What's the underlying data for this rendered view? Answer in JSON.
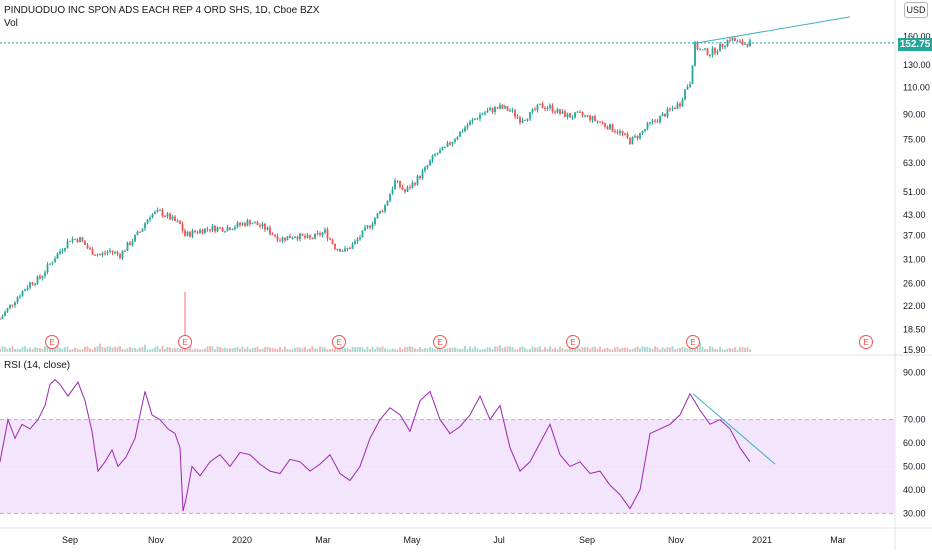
{
  "chart_data": {
    "type": "candlestick",
    "title": "PINDUODUO INC SPON ADS EACH REP 4 ORD SHS, 1D, Cboe BZX",
    "volume_label": "Vol",
    "currency": "USD",
    "last_price": "152.75",
    "price_axis_ticks": [
      "160.00",
      "130.00",
      "110.00",
      "90.00",
      "75.00",
      "63.00",
      "51.00",
      "43.00",
      "37.00",
      "31.00",
      "26.00",
      "22.00",
      "18.50",
      "15.90"
    ],
    "price_scale": "log",
    "time_axis_ticks": [
      "Sep",
      "Nov",
      "2020",
      "Mar",
      "May",
      "Jul",
      "Sep",
      "Nov",
      "2021",
      "Mar"
    ],
    "earnings_marker_label": "E",
    "price_trend": [
      [
        0,
        20
      ],
      [
        10,
        22
      ],
      [
        20,
        24
      ],
      [
        30,
        26
      ],
      [
        40,
        27
      ],
      [
        50,
        30
      ],
      [
        60,
        33
      ],
      [
        70,
        36
      ],
      [
        80,
        36
      ],
      [
        90,
        33
      ],
      [
        100,
        32
      ],
      [
        110,
        33
      ],
      [
        120,
        32
      ],
      [
        130,
        35
      ],
      [
        140,
        38
      ],
      [
        150,
        43
      ],
      [
        160,
        44
      ],
      [
        170,
        42
      ],
      [
        180,
        40
      ],
      [
        185,
        37
      ],
      [
        195,
        38
      ],
      [
        210,
        39
      ],
      [
        225,
        39
      ],
      [
        240,
        40
      ],
      [
        250,
        41
      ],
      [
        265,
        39
      ],
      [
        280,
        36
      ],
      [
        295,
        37
      ],
      [
        310,
        36
      ],
      [
        325,
        38
      ],
      [
        335,
        34
      ],
      [
        345,
        33
      ],
      [
        355,
        35
      ],
      [
        370,
        40
      ],
      [
        385,
        46
      ],
      [
        395,
        55
      ],
      [
        405,
        51
      ],
      [
        415,
        55
      ],
      [
        425,
        60
      ],
      [
        435,
        67
      ],
      [
        445,
        70
      ],
      [
        455,
        76
      ],
      [
        465,
        82
      ],
      [
        480,
        90
      ],
      [
        490,
        93
      ],
      [
        500,
        95
      ],
      [
        510,
        93
      ],
      [
        520,
        87
      ],
      [
        530,
        90
      ],
      [
        540,
        96
      ],
      [
        550,
        95
      ],
      [
        560,
        91
      ],
      [
        570,
        89
      ],
      [
        580,
        90
      ],
      [
        590,
        88
      ],
      [
        600,
        85
      ],
      [
        610,
        82
      ],
      [
        620,
        79
      ],
      [
        630,
        74
      ],
      [
        640,
        78
      ],
      [
        650,
        84
      ],
      [
        660,
        88
      ],
      [
        670,
        93
      ],
      [
        680,
        98
      ],
      [
        685,
        108
      ],
      [
        690,
        115
      ],
      [
        695,
        150
      ],
      [
        700,
        145
      ],
      [
        710,
        142
      ],
      [
        720,
        148
      ],
      [
        730,
        158
      ],
      [
        740,
        152
      ],
      [
        750,
        152.75
      ]
    ],
    "trendlines": [
      {
        "pane": "price",
        "from": [
          693,
          152
        ],
        "to": [
          850,
          185
        ]
      },
      {
        "pane": "rsi",
        "from": [
          693,
          81
        ],
        "to": [
          775,
          51
        ]
      }
    ],
    "rsi": {
      "title": "RSI (14, close)",
      "axis_ticks": [
        "90.00",
        "70.00",
        "60.00",
        "50.00",
        "40.00",
        "30.00"
      ],
      "band": [
        30,
        70
      ],
      "ylim": [
        28,
        92
      ],
      "series": [
        [
          0,
          52
        ],
        [
          8,
          70
        ],
        [
          15,
          62
        ],
        [
          22,
          68
        ],
        [
          30,
          66
        ],
        [
          38,
          70
        ],
        [
          45,
          76
        ],
        [
          50,
          85
        ],
        [
          55,
          87
        ],
        [
          60,
          85
        ],
        [
          68,
          80
        ],
        [
          78,
          86
        ],
        [
          85,
          78
        ],
        [
          92,
          65
        ],
        [
          98,
          48
        ],
        [
          105,
          52
        ],
        [
          112,
          57
        ],
        [
          118,
          50
        ],
        [
          126,
          54
        ],
        [
          135,
          62
        ],
        [
          145,
          82
        ],
        [
          152,
          72
        ],
        [
          160,
          70
        ],
        [
          168,
          66
        ],
        [
          175,
          64
        ],
        [
          180,
          58
        ],
        [
          183,
          31
        ],
        [
          186,
          36
        ],
        [
          192,
          50
        ],
        [
          200,
          46
        ],
        [
          210,
          52
        ],
        [
          220,
          55
        ],
        [
          230,
          50
        ],
        [
          240,
          56
        ],
        [
          250,
          55
        ],
        [
          260,
          51
        ],
        [
          270,
          48
        ],
        [
          280,
          47
        ],
        [
          290,
          53
        ],
        [
          300,
          52
        ],
        [
          310,
          48
        ],
        [
          320,
          51
        ],
        [
          330,
          55
        ],
        [
          340,
          47
        ],
        [
          350,
          44
        ],
        [
          360,
          50
        ],
        [
          370,
          62
        ],
        [
          380,
          70
        ],
        [
          390,
          75
        ],
        [
          400,
          72
        ],
        [
          410,
          65
        ],
        [
          420,
          78
        ],
        [
          430,
          82
        ],
        [
          440,
          70
        ],
        [
          450,
          64
        ],
        [
          460,
          67
        ],
        [
          470,
          72
        ],
        [
          480,
          80
        ],
        [
          490,
          70
        ],
        [
          500,
          76
        ],
        [
          510,
          58
        ],
        [
          520,
          48
        ],
        [
          530,
          52
        ],
        [
          540,
          60
        ],
        [
          550,
          68
        ],
        [
          560,
          55
        ],
        [
          570,
          50
        ],
        [
          580,
          52
        ],
        [
          590,
          47
        ],
        [
          600,
          48
        ],
        [
          610,
          42
        ],
        [
          620,
          38
        ],
        [
          630,
          32
        ],
        [
          640,
          40
        ],
        [
          650,
          64
        ],
        [
          660,
          66
        ],
        [
          670,
          68
        ],
        [
          680,
          72
        ],
        [
          690,
          81
        ],
        [
          700,
          74
        ],
        [
          710,
          68
        ],
        [
          720,
          70
        ],
        [
          730,
          66
        ],
        [
          740,
          58
        ],
        [
          750,
          52
        ]
      ]
    },
    "volume_spikes": [
      {
        "x": 50,
        "v": 25
      },
      {
        "x": 100,
        "v": 14
      },
      {
        "x": 145,
        "v": 12
      },
      {
        "x": 185,
        "v": 100
      },
      {
        "x": 440,
        "v": 14
      },
      {
        "x": 500,
        "v": 12
      },
      {
        "x": 573,
        "v": 24
      },
      {
        "x": 693,
        "v": 28
      },
      {
        "x": 700,
        "v": 16
      },
      {
        "x": 752,
        "v": 12
      }
    ]
  }
}
